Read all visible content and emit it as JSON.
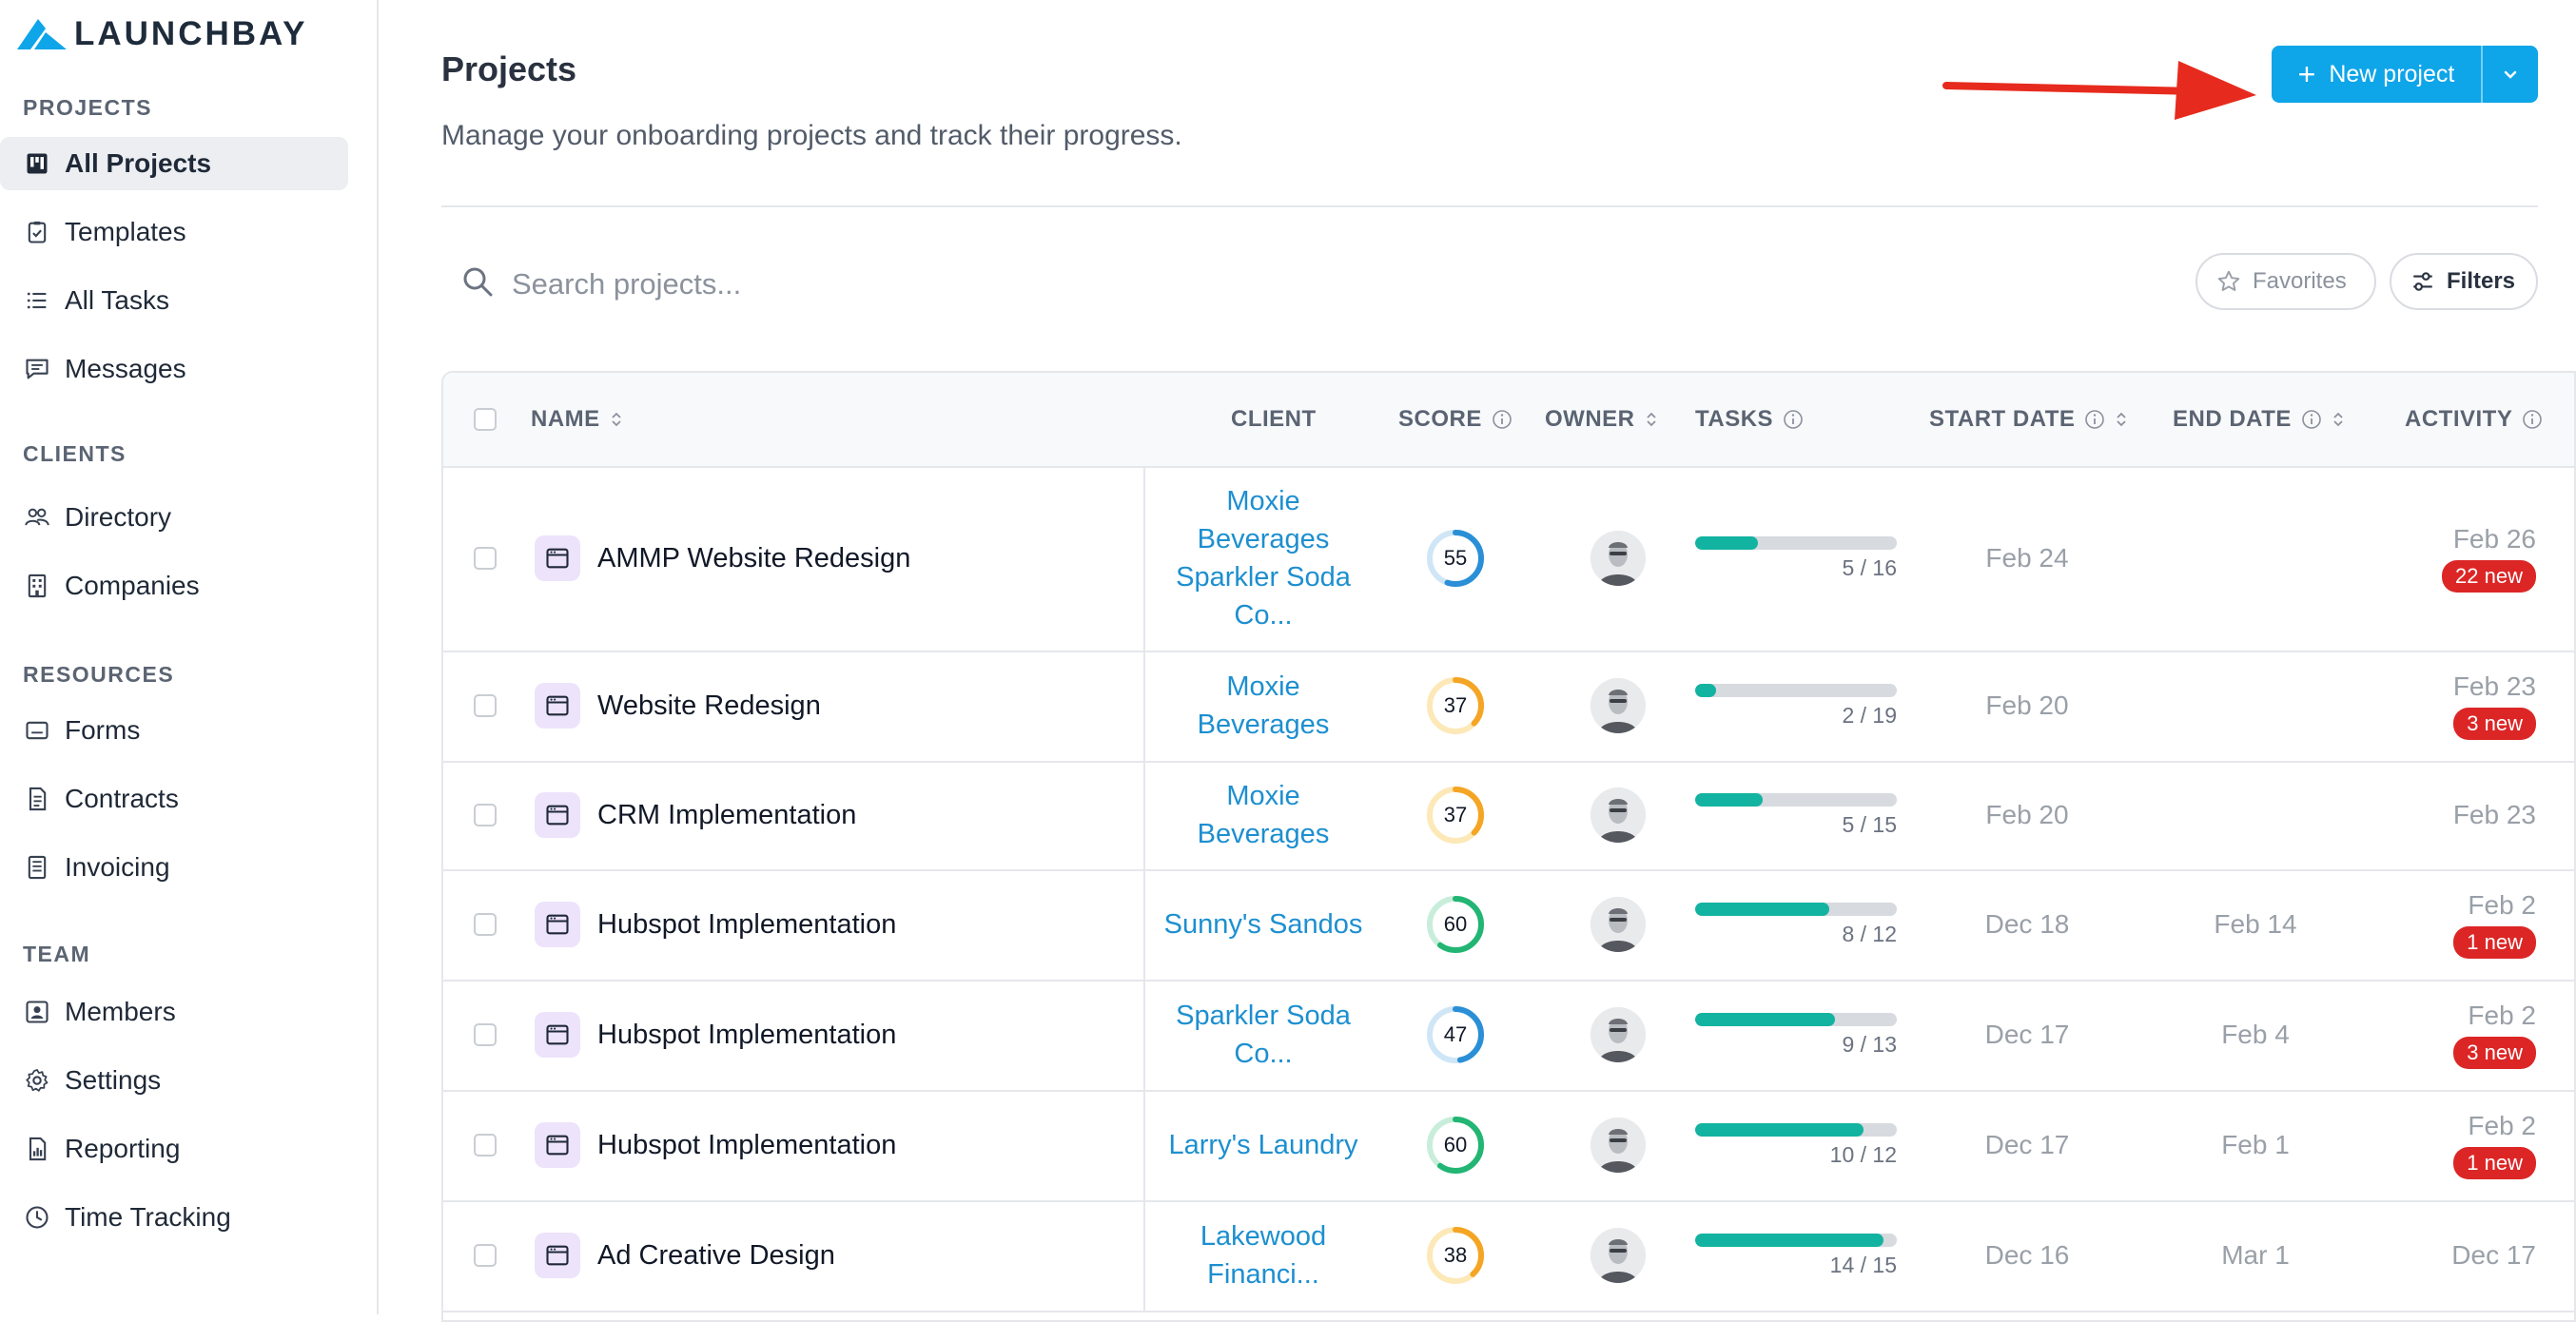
{
  "brand": {
    "name": "LAUNCHBAY",
    "color": "#0ea5e9"
  },
  "sidebar": {
    "sections": [
      {
        "label": "PROJECTS",
        "items": [
          {
            "label": "All Projects",
            "icon": "kanban-icon",
            "active": true
          },
          {
            "label": "Templates",
            "icon": "clipboard-check-icon"
          },
          {
            "label": "All Tasks",
            "icon": "list-icon"
          },
          {
            "label": "Messages",
            "icon": "message-icon"
          }
        ]
      },
      {
        "label": "CLIENTS",
        "items": [
          {
            "label": "Directory",
            "icon": "users-icon"
          },
          {
            "label": "Companies",
            "icon": "building-icon"
          }
        ]
      },
      {
        "label": "RESOURCES",
        "items": [
          {
            "label": "Forms",
            "icon": "form-icon"
          },
          {
            "label": "Contracts",
            "icon": "document-icon"
          },
          {
            "label": "Invoicing",
            "icon": "invoice-icon"
          }
        ]
      },
      {
        "label": "TEAM",
        "items": [
          {
            "label": "Members",
            "icon": "member-icon"
          },
          {
            "label": "Settings",
            "icon": "gear-icon"
          },
          {
            "label": "Reporting",
            "icon": "report-icon"
          },
          {
            "label": "Time Tracking",
            "icon": "clock-icon"
          }
        ]
      }
    ]
  },
  "header": {
    "title": "Projects",
    "subtitle": "Manage your onboarding projects and track their progress.",
    "new_button_label": "New project",
    "annotation_arrow_color": "#e62b1e"
  },
  "search": {
    "placeholder": "Search projects..."
  },
  "filters": {
    "favorites_label": "Favorites",
    "filters_label": "Filters"
  },
  "table": {
    "columns": {
      "name": "NAME",
      "client": "CLIENT",
      "score": "SCORE",
      "owner": "OWNER",
      "tasks": "TASKS",
      "start": "START DATE",
      "end": "END DATE",
      "activity": "ACTIVITY"
    },
    "rows": [
      {
        "name": "AMMP Website Redesign",
        "client": [
          "Moxie",
          "Beverages",
          "Sparkler Soda",
          "Co..."
        ],
        "score": 55,
        "tasks_done": 5,
        "tasks_total": 16,
        "tasks_label": "5 / 16",
        "start": "Feb 24",
        "end": "",
        "activity": "Feb 26",
        "badge": "22 new"
      },
      {
        "name": "Website Redesign",
        "client": [
          "Moxie",
          "Beverages"
        ],
        "score": 37,
        "tasks_done": 2,
        "tasks_total": 19,
        "tasks_label": "2 / 19",
        "start": "Feb 20",
        "end": "",
        "activity": "Feb 23",
        "badge": "3 new"
      },
      {
        "name": "CRM Implementation",
        "client": [
          "Moxie",
          "Beverages"
        ],
        "score": 37,
        "tasks_done": 5,
        "tasks_total": 15,
        "tasks_label": "5 / 15",
        "start": "Feb 20",
        "end": "",
        "activity": "Feb 23",
        "badge": ""
      },
      {
        "name": "Hubspot Implementation",
        "client": [
          "Sunny's Sandos"
        ],
        "score": 60,
        "tasks_done": 8,
        "tasks_total": 12,
        "tasks_label": "8 / 12",
        "start": "Dec 18",
        "end": "Feb 14",
        "activity": "Feb 2",
        "badge": "1 new"
      },
      {
        "name": "Hubspot Implementation",
        "client": [
          "Sparkler Soda",
          "Co..."
        ],
        "score": 47,
        "tasks_done": 9,
        "tasks_total": 13,
        "tasks_label": "9 / 13",
        "start": "Dec 17",
        "end": "Feb 4",
        "activity": "Feb 2",
        "badge": "3 new"
      },
      {
        "name": "Hubspot Implementation",
        "client": [
          "Larry's Laundry"
        ],
        "score": 60,
        "tasks_done": 10,
        "tasks_total": 12,
        "tasks_label": "10 / 12",
        "start": "Dec 17",
        "end": "Feb 1",
        "activity": "Feb 2",
        "badge": "1 new"
      },
      {
        "name": "Ad Creative Design",
        "client": [
          "Lakewood",
          "Financi..."
        ],
        "score": 38,
        "tasks_done": 14,
        "tasks_total": 15,
        "tasks_label": "14 / 15",
        "start": "Dec 16",
        "end": "Mar 1",
        "activity": "Dec 17",
        "badge": ""
      }
    ]
  },
  "colors": {
    "score_high": "#22b573",
    "score_mid": "#2a8fd6",
    "score_low": "#f5a524",
    "task_fill": "#13b3a1",
    "badge": "#dc2626",
    "client_link": "#1d8fd0"
  }
}
